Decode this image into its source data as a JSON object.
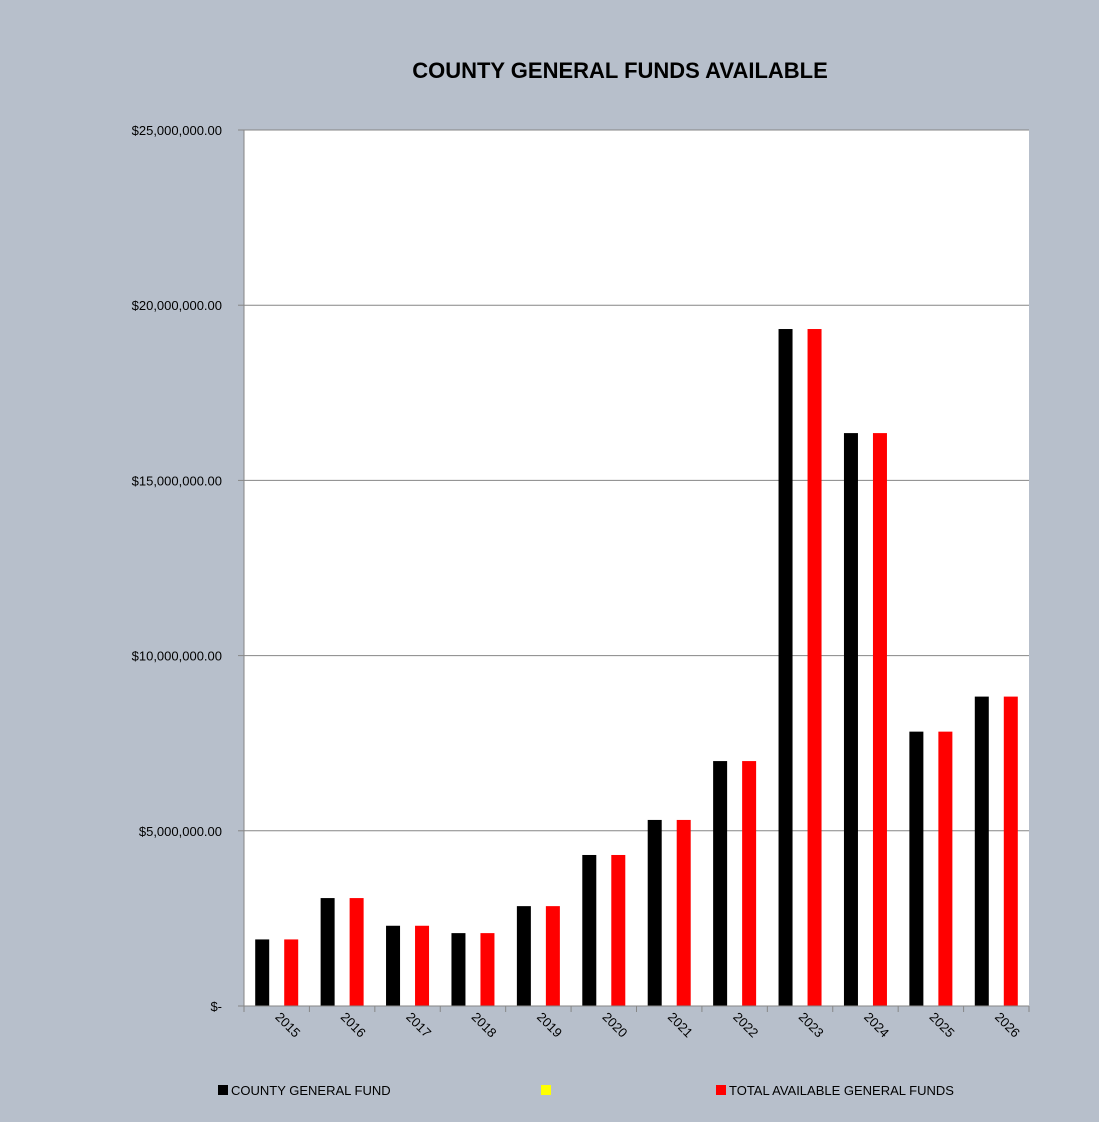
{
  "chart_data": {
    "type": "bar",
    "title": "COUNTY GENERAL FUNDS AVAILABLE",
    "categories": [
      "2015",
      "2016",
      "2017",
      "2018",
      "2019",
      "2020",
      "2021",
      "2022",
      "2023",
      "2024",
      "2025",
      "2026"
    ],
    "series": [
      {
        "name": "COUNTY GENERAL FUND",
        "color": "#000000",
        "values": [
          1900000,
          3080000,
          2290000,
          2080000,
          2850000,
          4310000,
          5310000,
          6990000,
          19320000,
          16350000,
          7830000,
          8830000
        ]
      },
      {
        "name": "",
        "color": "#ffff00",
        "values": [
          0,
          0,
          0,
          0,
          0,
          0,
          0,
          0,
          0,
          0,
          0,
          0
        ]
      },
      {
        "name": "TOTAL AVAILABLE GENERAL FUNDS",
        "color": "#ff0000",
        "values": [
          1900000,
          3080000,
          2290000,
          2080000,
          2850000,
          4310000,
          5310000,
          6990000,
          19320000,
          16350000,
          7830000,
          8830000
        ]
      }
    ],
    "yticks": [
      0,
      5000000,
      10000000,
      15000000,
      20000000,
      25000000
    ],
    "ytick_labels": [
      "$-",
      "$5,000,000.00",
      "$10,000,000.00",
      "$15,000,000.00",
      "$20,000,000.00",
      "$25,000,000.00"
    ],
    "ylim": [
      0,
      25000000
    ],
    "grid": true,
    "legend_position": "bottom",
    "plot_background": "#ffffff",
    "chart_background": "#b7bfcb"
  }
}
